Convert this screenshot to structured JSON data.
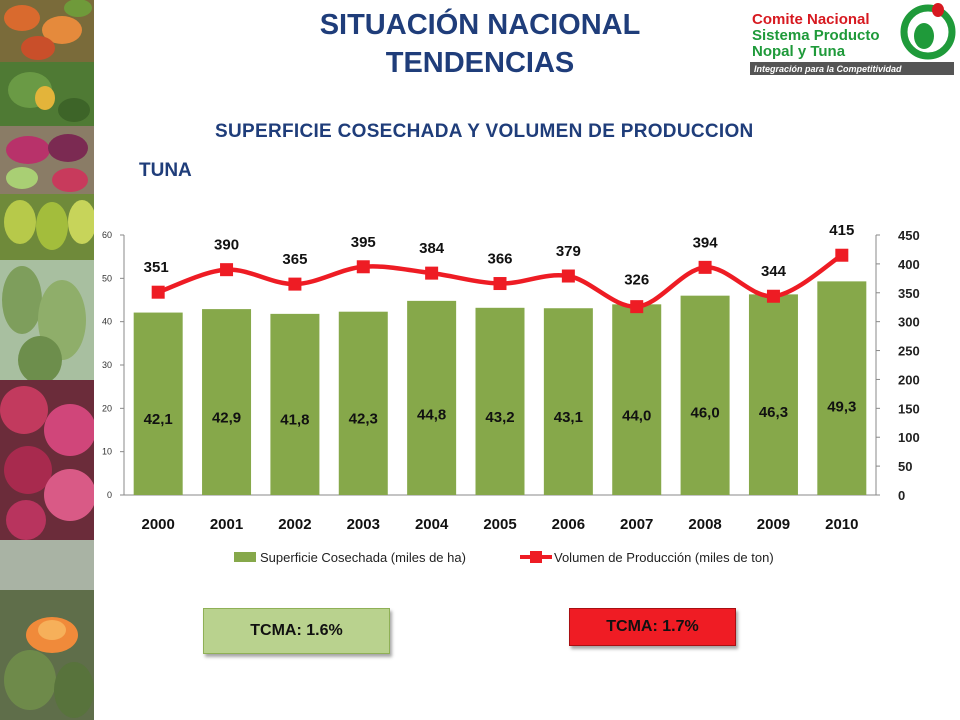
{
  "header": {
    "title_line1": "SITUACIÓN NACIONAL",
    "title_line2": "TENDENCIAS"
  },
  "logo": {
    "line1": "Comite Nacional",
    "line2": "Sistema Producto",
    "line3": "Nopal y Tuna",
    "tagline": "Integración para la Competitividad",
    "colors": {
      "green": "#1f9a3a",
      "red": "#d71920",
      "tagline_bg": "#555555"
    }
  },
  "photos": [
    "cactus-fruit-photo",
    "cactus-pad-photo",
    "prickly-pear-photo",
    "green-tuna-photo",
    "nopal-plant-photo",
    "red-tuna-photo",
    "cactus-flower-photo"
  ],
  "chart_data": {
    "type": "bar",
    "title": "SUPERFICIE COSECHADA Y VOLUMEN DE PRODUCCION",
    "section_label": "TUNA",
    "categories": [
      "2000",
      "2001",
      "2002",
      "2003",
      "2004",
      "2005",
      "2006",
      "2007",
      "2008",
      "2009",
      "2010"
    ],
    "series": [
      {
        "name": "Superficie Cosechada (miles de ha)",
        "type": "bar",
        "axis": "left",
        "color": "#86a84a",
        "values": [
          42.1,
          42.9,
          41.8,
          42.3,
          44.8,
          43.2,
          43.1,
          44.0,
          46.0,
          46.3,
          49.3
        ],
        "labels": [
          "42,1",
          "42,9",
          "41,8",
          "42,3",
          "44,8",
          "43,2",
          "43,1",
          "44,0",
          "46,0",
          "46,3",
          "49,3"
        ]
      },
      {
        "name": "Volumen de Producción (miles de ton)",
        "type": "line",
        "axis": "right",
        "color": "#ee1c24",
        "values": [
          351,
          390,
          365,
          395,
          384,
          366,
          379,
          326,
          394,
          344,
          415
        ],
        "labels": [
          "351",
          "390",
          "365",
          "395",
          "384",
          "366",
          "379",
          "326",
          "394",
          "344",
          "415"
        ]
      }
    ],
    "y_left": {
      "ylim": [
        0,
        60
      ],
      "ticks": [
        "0",
        "10",
        "20",
        "30",
        "40",
        "50",
        "60"
      ]
    },
    "y_right": {
      "ylim": [
        0,
        450
      ],
      "ticks": [
        "0",
        "50",
        "100",
        "150",
        "200",
        "250",
        "300",
        "350",
        "400",
        "450"
      ]
    },
    "legend_position": "bottom",
    "grid": false
  },
  "badges": {
    "area_growth": "TCMA:  1.6%",
    "volume_growth": "TCMA:  1.7%",
    "colors": {
      "area": "#b9d28e",
      "volume": "#ef1c24"
    }
  }
}
